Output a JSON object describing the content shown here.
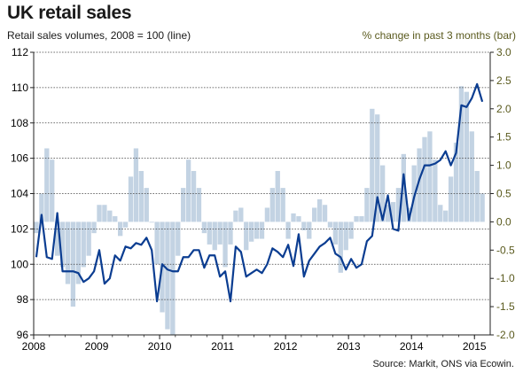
{
  "header": {
    "title": "UK retail sales",
    "left_subtitle": "Retail sales volumes, 2008 = 100 (line)",
    "right_subtitle": "% change in past 3 months  (bar)"
  },
  "footer": {
    "source": "Source: Markit,  ONS via Ecowin."
  },
  "colors": {
    "line": "#0b3d91",
    "bars": "#c3d3e3",
    "grid": "#444444",
    "right_axis_text": "#5a5a1e"
  },
  "chart_data": {
    "type": "bar+line",
    "title": "UK retail sales",
    "x_ticks": [
      "2008",
      "2009",
      "2010",
      "2011",
      "2012",
      "2013",
      "2014",
      "2015"
    ],
    "x_start": 2008.0,
    "x_end": 2015.25,
    "left_axis": {
      "ylim": [
        96,
        112
      ],
      "ticks": [
        "96",
        "98",
        "100",
        "102",
        "104",
        "106",
        "108",
        "110",
        "112"
      ]
    },
    "right_axis": {
      "ylim": [
        -2.0,
        3.0
      ],
      "ticks": [
        "-2.0",
        "-1.5",
        "-1.0",
        "-0.5",
        "0.0",
        "0.5",
        "1.0",
        "1.5",
        "2.0",
        "2.5",
        "3.0"
      ]
    },
    "gridlines": "dashed, aligned with left-axis ticks",
    "series": [
      {
        "name": "Retail sales volumes, 2008 = 100",
        "kind": "line",
        "axis": "left",
        "values": [
          100.4,
          102.8,
          100.4,
          100.3,
          102.9,
          99.6,
          99.6,
          99.6,
          99.5,
          99.0,
          99.2,
          99.6,
          100.8,
          98.9,
          99.2,
          100.5,
          100.2,
          101.0,
          100.9,
          101.2,
          101.1,
          101.5,
          100.8,
          97.9,
          100.0,
          99.7,
          99.6,
          99.6,
          100.4,
          100.4,
          100.8,
          100.8,
          99.8,
          100.5,
          100.5,
          99.3,
          99.6,
          97.9,
          101.0,
          100.7,
          99.3,
          99.5,
          99.7,
          99.5,
          100.0,
          100.9,
          100.7,
          100.4,
          101.1,
          99.9,
          101.7,
          99.3,
          100.2,
          100.6,
          101.0,
          101.2,
          101.5,
          100.6,
          100.4,
          99.7,
          100.3,
          99.8,
          100.0,
          101.3,
          101.6,
          103.8,
          102.5,
          103.9,
          102.0,
          101.9,
          105.1,
          102.5,
          103.8,
          104.8,
          105.6,
          105.6,
          105.7,
          105.9,
          106.4,
          105.6,
          106.3,
          109.0,
          108.9,
          109.4,
          110.2,
          109.2
        ]
      },
      {
        "name": "% change in past 3 months",
        "kind": "bar",
        "axis": "right",
        "values": [
          -0.2,
          0.5,
          1.3,
          1.1,
          -0.6,
          -0.8,
          -1.1,
          -1.5,
          -1.1,
          -0.8,
          -0.6,
          -0.2,
          0.3,
          0.3,
          0.2,
          0.1,
          -0.25,
          -0.1,
          0.8,
          1.3,
          0.9,
          0.6,
          0.0,
          -0.75,
          -1.6,
          -1.9,
          -2.0,
          -0.6,
          0.6,
          1.1,
          0.9,
          0.6,
          -0.2,
          -0.4,
          -0.5,
          -0.4,
          -0.8,
          -0.4,
          0.2,
          0.25,
          -0.5,
          -0.35,
          -0.3,
          -0.3,
          0.25,
          0.6,
          0.9,
          0.6,
          -0.3,
          0.15,
          0.1,
          -0.15,
          -0.3,
          0.25,
          0.4,
          0.3,
          -0.1,
          -0.4,
          -0.9,
          -0.5,
          -0.3,
          0.1,
          0.1,
          0.6,
          2.0,
          1.9,
          1.0,
          0.3,
          0.35,
          0.6,
          1.2,
          0.25,
          1.0,
          1.3,
          1.5,
          1.6,
          1.1,
          0.3,
          0.2,
          0.8,
          1.4,
          2.4,
          2.3,
          1.6,
          0.9,
          0.5
        ]
      }
    ]
  }
}
